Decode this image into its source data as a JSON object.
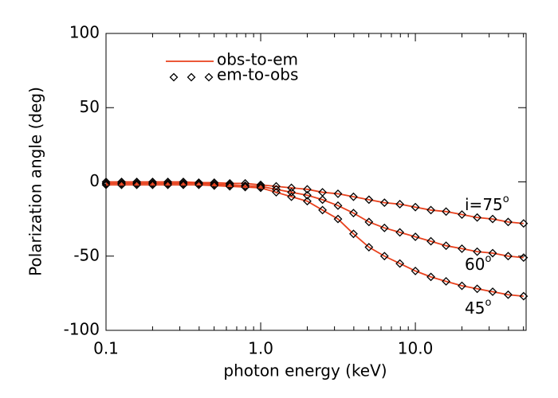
{
  "chart_data": {
    "type": "line",
    "x_label": "photon energy (keV)",
    "y_label": "Polarization angle (deg)",
    "log_x": true,
    "xlim": [
      0.1,
      52
    ],
    "xticks": [
      0.1,
      {
        "value": 1,
        "label": "1.0"
      },
      {
        "value": 10,
        "label": "10.0"
      }
    ],
    "xminorticks": [
      0.2,
      0.3,
      0.4,
      0.5,
      0.6,
      0.7,
      0.8,
      0.9,
      2,
      3,
      4,
      5,
      6,
      7,
      8,
      9,
      20,
      30,
      40,
      50
    ],
    "ylim": [
      -100,
      100
    ],
    "yticks": [
      -100,
      -50,
      0,
      50,
      100
    ],
    "legend": [
      {
        "name": "obs-to-em",
        "color": "#e8401c",
        "style": "line"
      },
      {
        "name": "em-to-obs",
        "color": "#000000",
        "style": "diamond"
      }
    ],
    "x": [
      0.1,
      0.126,
      0.158,
      0.2,
      0.251,
      0.316,
      0.398,
      0.501,
      0.631,
      0.794,
      1,
      1.26,
      1.58,
      2,
      2.51,
      3.16,
      3.98,
      5.01,
      6.31,
      7.94,
      10,
      12.6,
      15.8,
      20,
      25.1,
      31.6,
      39.8,
      50.1
    ],
    "curves": [
      {
        "label": "i=75",
        "sup": "o",
        "values": [
          0,
          0,
          0,
          0,
          0,
          0,
          -0.5,
          -0.5,
          -1,
          -1,
          -2,
          -3,
          -4,
          -5,
          -7,
          -8,
          -10,
          -12,
          -14,
          -15,
          -17,
          -19,
          -20,
          -22,
          -24,
          -25,
          -27,
          -28
        ]
      },
      {
        "label": "60",
        "sup": "o",
        "values": [
          -1,
          -1,
          -1,
          -1,
          -1,
          -1,
          -1,
          -1.5,
          -2,
          -2.5,
          -3,
          -5,
          -7,
          -9,
          -12,
          -16,
          -21,
          -27,
          -31,
          -34,
          -37,
          -40,
          -43,
          -45,
          -47,
          -48,
          -50,
          -51
        ]
      },
      {
        "label": "45",
        "sup": "o",
        "values": [
          -2,
          -2,
          -2,
          -2,
          -2,
          -2,
          -2,
          -2.5,
          -3,
          -3.5,
          -4,
          -7,
          -10,
          -13,
          -19,
          -25,
          -35,
          -44,
          -50,
          -55,
          -60,
          -64,
          -67,
          -70,
          -72,
          -74,
          -76,
          -77
        ]
      }
    ]
  }
}
